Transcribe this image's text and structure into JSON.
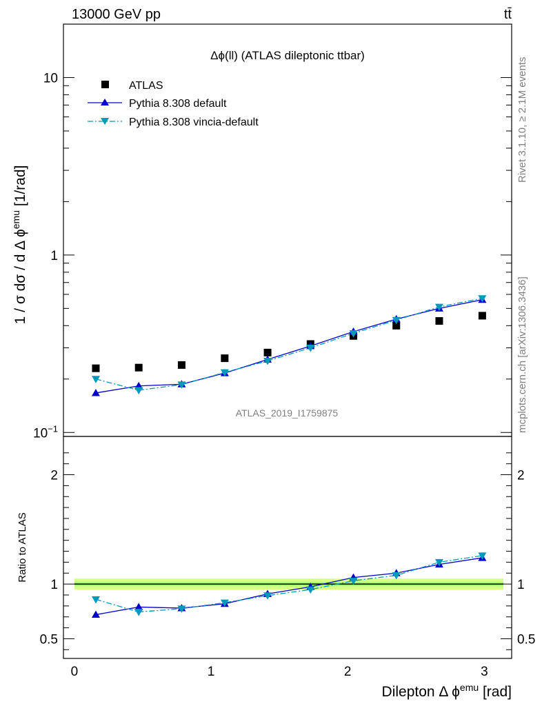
{
  "header": {
    "left": "13000 GeV pp",
    "right": "tt̄"
  },
  "side_labels": {
    "rivet": "Rivet 3.1.10, ≥ 2.1M events",
    "mcplots": "mcplots.cern.ch [arXiv:1306.3436]"
  },
  "watermark": "ATLAS_2019_I1759875",
  "chart_data": [
    {
      "type": "line",
      "panel": "main",
      "title": "Δϕ(ll) (ATLAS dileptonic ttbar)",
      "ylabel": "1 / σ  dσ / d Δ ϕ^emu [1/rad]",
      "ylabel_parts": {
        "main": "1 / σ  dσ / d Δ ϕ",
        "sup": "emu",
        "unit": " [1/rad]"
      },
      "yscale": "log",
      "xlim": [
        -0.08,
        3.2
      ],
      "ylim": [
        0.095,
        20
      ],
      "yticks": [
        {
          "v": 0.1,
          "base": "10",
          "exp": "−1"
        },
        {
          "v": 1,
          "base": "1",
          "exp": ""
        },
        {
          "v": 10,
          "base": "10",
          "exp": ""
        }
      ],
      "legend_position": "top-left",
      "x": [
        0.157,
        0.471,
        0.785,
        1.1,
        1.414,
        1.728,
        2.042,
        2.356,
        2.67,
        2.985
      ],
      "series": [
        {
          "name": "ATLAS",
          "color": "#000000",
          "marker": "square",
          "line": "none",
          "values": [
            0.23,
            0.232,
            0.24,
            0.262,
            0.282,
            0.315,
            0.35,
            0.4,
            0.425,
            0.455
          ]
        },
        {
          "name": "Pythia 8.308 default",
          "color": "#0000cc",
          "marker": "triangle-up",
          "line": "solid",
          "values": [
            0.167,
            0.183,
            0.187,
            0.216,
            0.258,
            0.307,
            0.37,
            0.435,
            0.5,
            0.56
          ]
        },
        {
          "name": "Pythia 8.308 vincia-default",
          "color": "#0099bb",
          "marker": "triangle-down",
          "line": "dashdot",
          "values": [
            0.2,
            0.173,
            0.186,
            0.218,
            0.253,
            0.3,
            0.362,
            0.43,
            0.51,
            0.57
          ]
        }
      ]
    },
    {
      "type": "line",
      "panel": "ratio",
      "xlabel": "Dilepton Δ ϕ^emu [rad]",
      "xlabel_parts": {
        "main": "Dilepton Δ ϕ",
        "sup": "emu",
        "unit": " [rad]"
      },
      "ylabel": "Ratio to ATLAS",
      "xlim": [
        -0.08,
        3.2
      ],
      "ylim": [
        0.32,
        2.35
      ],
      "xticks": [
        0,
        1,
        2,
        3
      ],
      "yticks": [
        0.5,
        1,
        2
      ],
      "reference_line": 1,
      "band_color": "#ccff66",
      "x": [
        0.157,
        0.471,
        0.785,
        1.1,
        1.414,
        1.728,
        2.042,
        2.356,
        2.67,
        2.985
      ],
      "series": [
        {
          "name": "Pythia 8.308 default",
          "color": "#0000cc",
          "marker": "triangle-up",
          "line": "solid",
          "values": [
            0.72,
            0.79,
            0.78,
            0.82,
            0.91,
            0.975,
            1.06,
            1.1,
            1.18,
            1.24
          ]
        },
        {
          "name": "Pythia 8.308 vincia-default",
          "color": "#0099bb",
          "marker": "triangle-down",
          "line": "dashdot",
          "values": [
            0.86,
            0.745,
            0.775,
            0.83,
            0.895,
            0.95,
            1.03,
            1.08,
            1.2,
            1.26
          ]
        }
      ]
    }
  ]
}
